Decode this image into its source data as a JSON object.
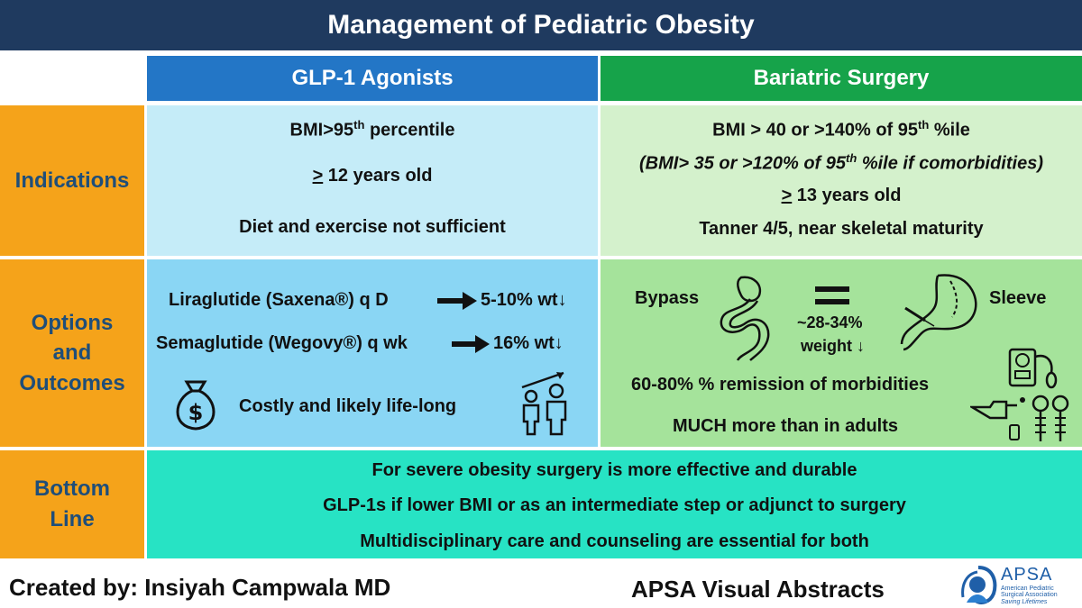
{
  "title": "Management of Pediatric Obesity",
  "columns": {
    "glp1": "GLP-1 Agonists",
    "surgery": "Bariatric Surgery"
  },
  "rows": {
    "indications": "Indications",
    "options": [
      "Options",
      "and",
      "Outcomes"
    ],
    "bottom": [
      "Bottom",
      "Line"
    ]
  },
  "indications": {
    "glp1": {
      "bmi_pre": "BMI>95",
      "bmi_sup": "th",
      "bmi_post": " percentile",
      "age_ge": ">",
      "age_rest": " 12 years old",
      "diet": "Diet and exercise not sufficient"
    },
    "surgery": {
      "bmi_pre": "BMI > 40 or >140% of 95",
      "bmi_sup": "th",
      "bmi_post": " %ile",
      "como_pre": "(BMI> 35 or >120% of 95",
      "como_sup": "th",
      "como_post": " %ile if comorbidities)",
      "age_ge": ">",
      "age_rest": " 13 years old",
      "tanner": "Tanner 4/5, near skeletal maturity"
    }
  },
  "options": {
    "glp1": {
      "lira_drug": "Liraglutide (Saxena®) q D",
      "lira_result": "5-10% wt↓",
      "sema_drug": "Semaglutide (Wegovy®) q wk",
      "sema_result": "16% wt↓",
      "cost": "Costly and likely life-long"
    },
    "surgery": {
      "bypass": "Bypass",
      "sleeve": "Sleeve",
      "weight_range": "~28-34%",
      "weight_label": "weight ↓",
      "remission": "60-80% % remission of morbidities",
      "adults": "MUCH more than in adults"
    }
  },
  "bottom_line": [
    "For severe obesity surgery is more effective and durable",
    "GLP-1s if lower BMI or as an intermediate step or adjunct to surgery",
    "Multidisciplinary care and counseling are essential for both"
  ],
  "footer": {
    "created_by": "Created by: Insiyah Campwala MD",
    "series": "APSA Visual Abstracts",
    "logo_name": "APSA",
    "logo_sub1": "American Pediatric",
    "logo_sub2": "Surgical Association",
    "logo_tagline": "Saving Lifetimes"
  },
  "colors": {
    "title_bg": "#1f3a5f",
    "glp1_header": "#2376c6",
    "surgery_header": "#16a34a",
    "row_header": "#f5a31a",
    "row_header_text": "#1f4e79",
    "glp1_indications": "#c5ecf8",
    "surgery_indications": "#d4f1cc",
    "glp1_options": "#8ad6f4",
    "surgery_options": "#a5e39b",
    "bottom_line": "#27e3c4"
  }
}
